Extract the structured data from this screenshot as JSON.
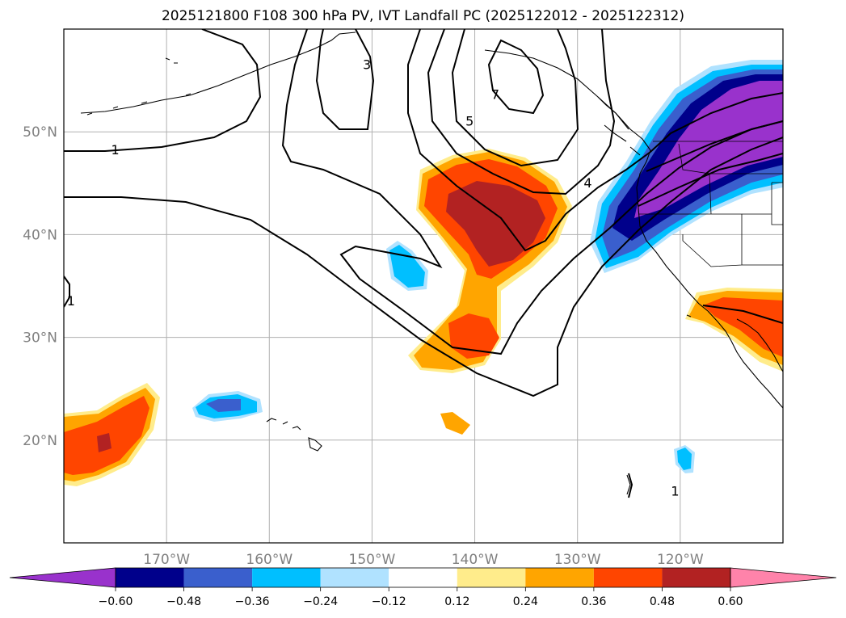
{
  "title": "2025121800 F108 300 hPa PV, IVT Landfall PC (2025122012 - 2025122312)",
  "map": {
    "projection": "equirectangular",
    "lon_range": [
      -180,
      -110
    ],
    "lat_range": [
      10,
      60
    ],
    "gridlines": true,
    "lon_ticks": [
      {
        "lon": -170,
        "label": "170°W"
      },
      {
        "lon": -160,
        "label": "160°W"
      },
      {
        "lon": -150,
        "label": "150°W"
      },
      {
        "lon": -140,
        "label": "140°W"
      },
      {
        "lon": -130,
        "label": "130°W"
      },
      {
        "lon": -120,
        "label": "120°W"
      }
    ],
    "lat_ticks": [
      {
        "lat": 50,
        "label": "50°N"
      },
      {
        "lat": 40,
        "label": "40°N"
      },
      {
        "lat": 30,
        "label": "30°N"
      },
      {
        "lat": 20,
        "label": "20°N"
      }
    ],
    "pv_contour_labels": [
      {
        "text": "1",
        "lon": -175,
        "lat": 48.2
      },
      {
        "text": "3",
        "lon": -150.5,
        "lat": 56.5
      },
      {
        "text": "5",
        "lon": -140.5,
        "lat": 51.0
      },
      {
        "text": "7",
        "lon": -138.0,
        "lat": 53.6
      },
      {
        "text": "4",
        "lon": -129.0,
        "lat": 45.0
      },
      {
        "text": "1",
        "lon": -179.3,
        "lat": 33.5
      },
      {
        "text": "1",
        "lon": -120.5,
        "lat": 15.0
      }
    ]
  },
  "colorbar": {
    "levels": [
      -0.6,
      -0.48,
      -0.36,
      -0.24,
      -0.12,
      0.12,
      0.24,
      0.36,
      0.48,
      0.6
    ],
    "tick_labels": [
      "−0.60",
      "−0.48",
      "−0.36",
      "−0.24",
      "−0.12",
      "0.12",
      "0.24",
      "0.36",
      "0.48",
      "0.60"
    ],
    "colors": [
      "#9932cc",
      "#00008b",
      "#3a5fcd",
      "#00bfff",
      "#b0e2ff",
      "#ffffff",
      "#ffec8b",
      "#ffa500",
      "#ff4500",
      "#b22222",
      "#ff83aa"
    ],
    "extend": "both"
  }
}
